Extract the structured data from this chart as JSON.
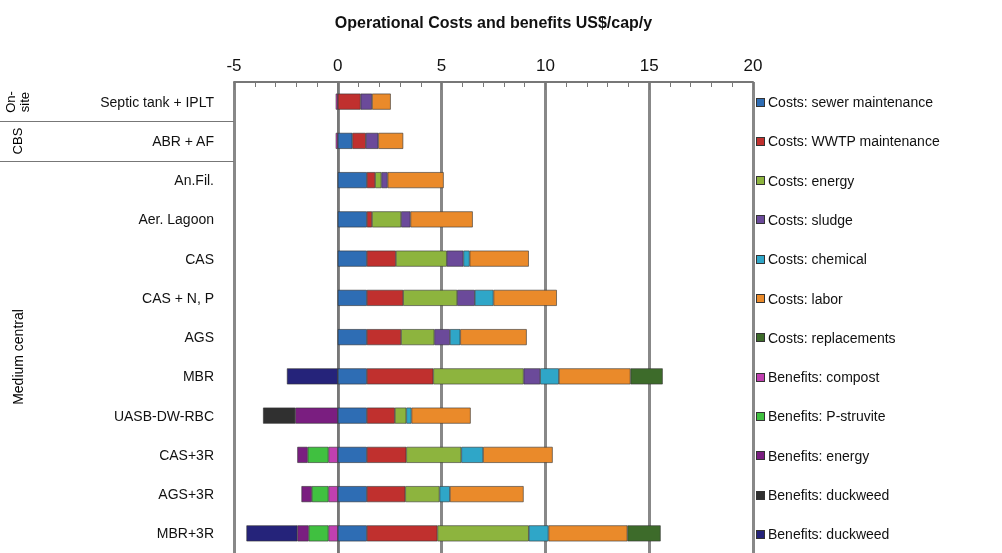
{
  "chart_data": {
    "type": "bar",
    "orientation": "horizontal",
    "stacked": true,
    "xlabel": "Operational Costs and benefits US$/cap/y",
    "categories": [
      "Septic tank + IPLT",
      "ABR + AF",
      "An.Fil.",
      "Aer. Lagoon",
      "CAS",
      "CAS + N, P",
      "AGS",
      "MBR",
      "UASB-DW-RBC",
      "CAS+3R",
      "AGS+3R",
      "MBR+3R"
    ],
    "annotations": [
      "On-site",
      "CBS",
      "Medium central"
    ],
    "xlim": [
      -5,
      20
    ],
    "xticks": [
      -5,
      0,
      5,
      10,
      15,
      20
    ],
    "grid": "x",
    "legend": "right",
    "series": [
      {
        "name": "Costs: sewer maintenance",
        "color": "#2e6db4",
        "values": [
          null,
          0.7,
          1.4,
          1.4,
          1.4,
          1.4,
          1.4,
          1.4,
          1.4,
          1.4,
          1.4,
          1.4
        ]
      },
      {
        "name": "Costs: WWTP maintenance",
        "color": "#c0302e",
        "values": [
          1.1,
          0.65,
          0.4,
          0.25,
          1.4,
          1.75,
          1.65,
          3.2,
          1.35,
          1.9,
          1.85,
          3.4
        ]
      },
      {
        "name": "Costs: energy",
        "color": "#8db43e",
        "values": [
          null,
          null,
          0.3,
          1.4,
          2.45,
          2.6,
          1.6,
          4.35,
          0.55,
          2.65,
          1.65,
          4.4
        ]
      },
      {
        "name": "Costs: sludge",
        "color": "#6b4a9a",
        "values": [
          0.55,
          0.6,
          0.3,
          0.45,
          0.8,
          0.85,
          0.75,
          0.8,
          null,
          null,
          null,
          null
        ]
      },
      {
        "name": "Costs: chemical",
        "color": "#2fa6c8",
        "values": [
          null,
          null,
          null,
          null,
          0.3,
          0.9,
          0.5,
          0.9,
          0.25,
          1.05,
          0.5,
          0.95
        ]
      },
      {
        "name": "Costs: labor",
        "color": "#ea8a2a",
        "values": [
          0.9,
          1.2,
          2.7,
          3.0,
          2.85,
          3.05,
          3.2,
          3.45,
          2.85,
          3.35,
          3.55,
          3.8
        ]
      },
      {
        "name": "Costs: replacements",
        "color": "#3d6b2a",
        "values": [
          null,
          null,
          null,
          null,
          null,
          null,
          null,
          1.55,
          null,
          null,
          null,
          1.6
        ]
      },
      {
        "name": "Benefits: compost",
        "color": "#c040b0",
        "values": [
          -0.1,
          -0.1,
          null,
          null,
          null,
          null,
          null,
          null,
          null,
          -0.45,
          -0.45,
          -0.45
        ]
      },
      {
        "name": "Benefits: P-struvite",
        "color": "#40c040",
        "values": [
          null,
          null,
          null,
          null,
          null,
          null,
          null,
          null,
          null,
          -1.0,
          -0.8,
          -0.95
        ]
      },
      {
        "name": "Benefits: energy",
        "color": "#7a1e80",
        "values": [
          null,
          null,
          null,
          null,
          null,
          null,
          null,
          null,
          -2.05,
          -0.5,
          -0.5,
          -0.55
        ]
      },
      {
        "name": "Benefits: duckweed",
        "color": "#303030",
        "values": [
          null,
          null,
          null,
          null,
          null,
          null,
          null,
          null,
          -1.55,
          null,
          null,
          null
        ]
      },
      {
        "name": "Benefits: duckweed",
        "color": "#25237a",
        "values": [
          null,
          null,
          null,
          null,
          null,
          null,
          null,
          -2.45,
          null,
          null,
          null,
          -2.45
        ]
      }
    ]
  }
}
